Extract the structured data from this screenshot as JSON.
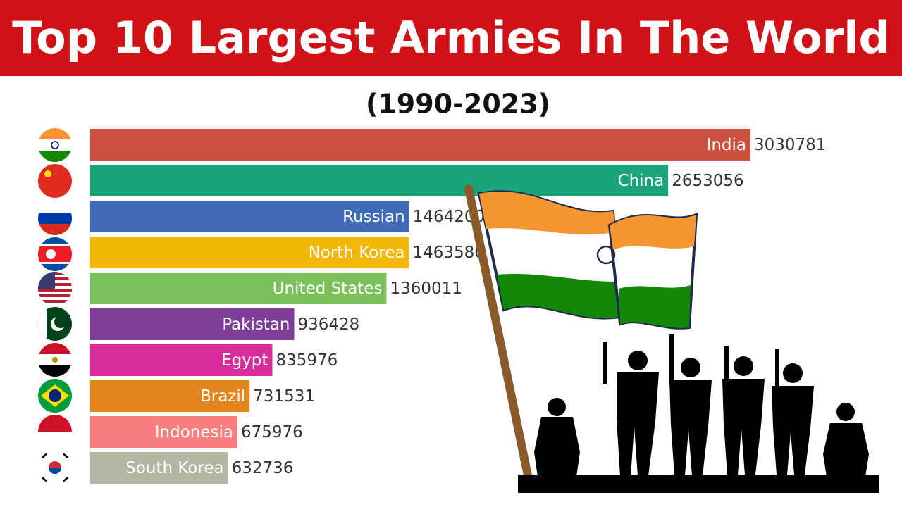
{
  "chart_data": {
    "type": "bar",
    "orientation": "horizontal",
    "title": "Top 10 Largest Armies In The World",
    "subtitle": "(1990-2023)",
    "categories": [
      "India",
      "China",
      "Russian",
      "North Korea",
      "United States",
      "Pakistan",
      "Egypt",
      "Brazil",
      "Indonesia",
      "South Korea"
    ],
    "values": [
      3030781,
      2653056,
      1464200,
      1463580,
      1360011,
      936428,
      835976,
      731531,
      675976,
      632736
    ],
    "colors": [
      "#cb5040",
      "#1aa47b",
      "#3e6bb3",
      "#f2b807",
      "#7cc05b",
      "#7c3f95",
      "#d62d9b",
      "#e4851d",
      "#f77f7f",
      "#b1b6a5"
    ]
  }
}
